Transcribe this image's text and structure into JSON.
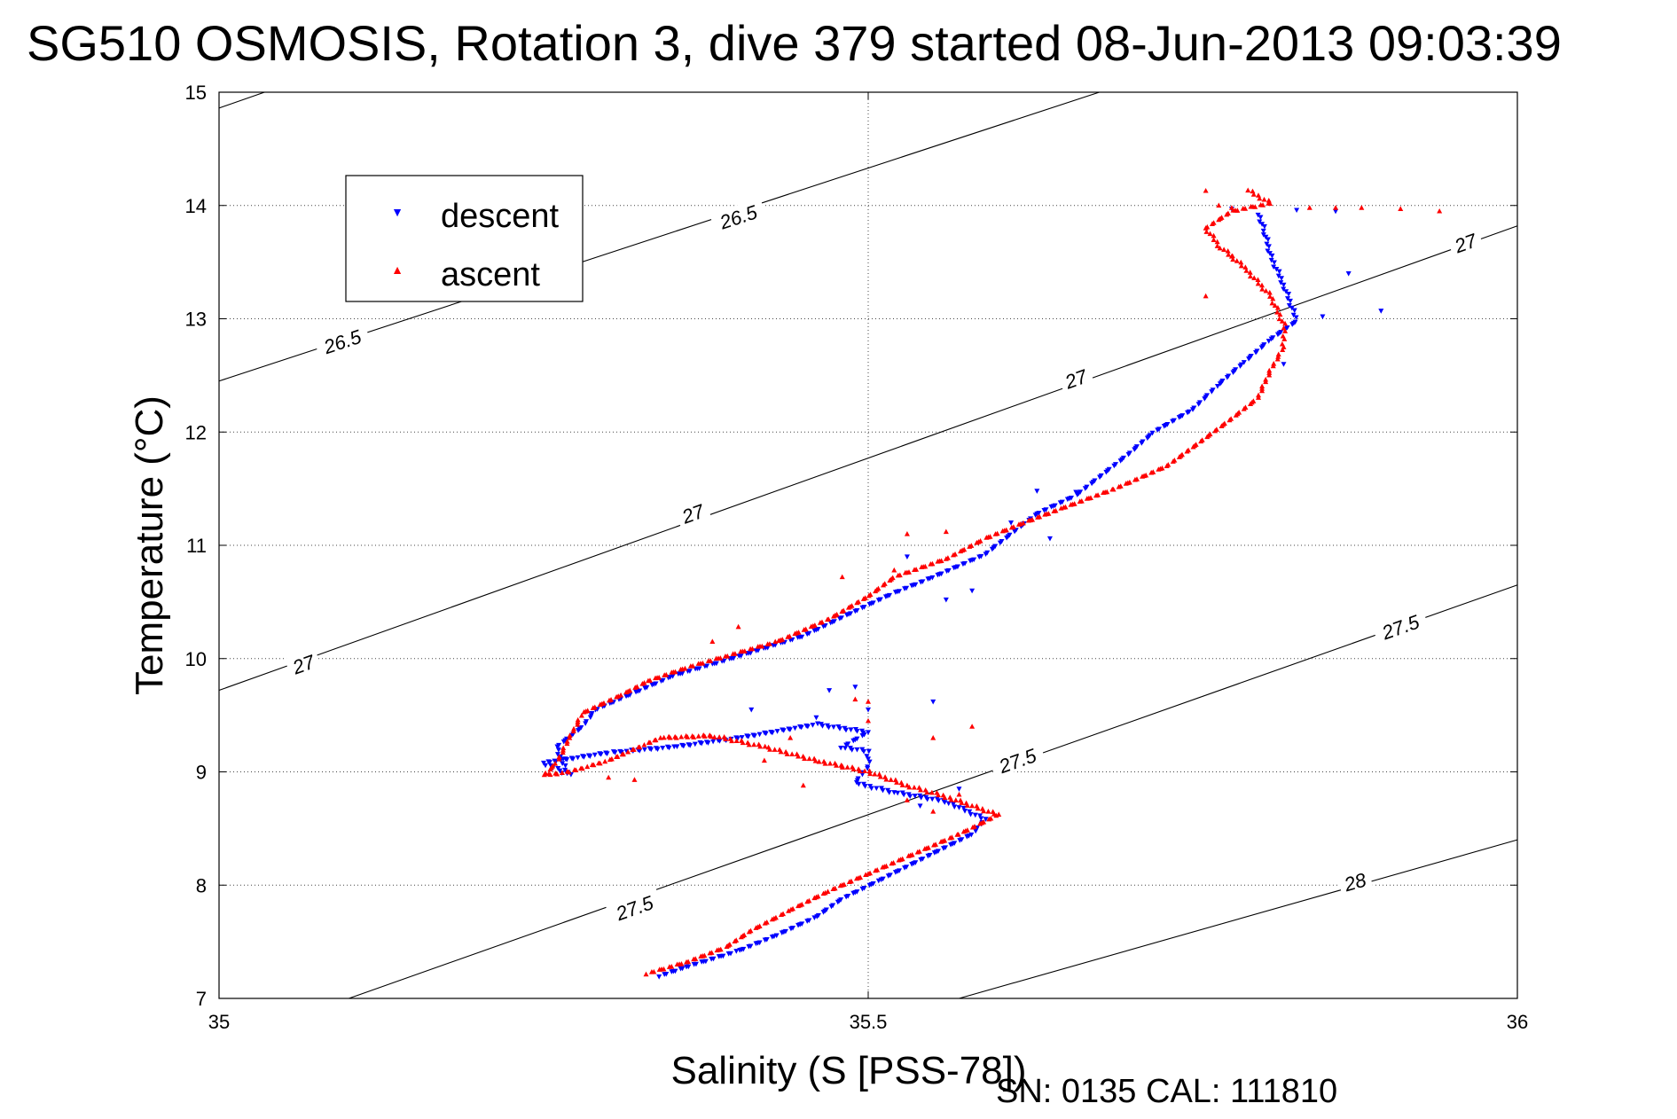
{
  "chart_data": {
    "type": "scatter",
    "title": "SG510 OSMOSIS, Rotation 3, dive 379 started 08-Jun-2013 09:03:39",
    "xlabel": "Salinity (S [PSS-78])",
    "ylabel": "Temperature (°C)",
    "xlim": [
      35,
      36
    ],
    "ylim": [
      7,
      15
    ],
    "x_ticks": [
      "35",
      "35.5",
      "36"
    ],
    "y_ticks": [
      "7",
      "8",
      "9",
      "10",
      "11",
      "12",
      "13",
      "14",
      "15"
    ],
    "grid": true,
    "legend_position": "top-left",
    "density_contours": [
      {
        "value": "26.5",
        "segments": [
          [
            [
              35.0,
              12.45
            ],
            [
              35.678,
              15.0
            ]
          ],
          [
            [
              35.0,
              14.86
            ],
            [
              35.035,
              15.0
            ]
          ]
        ],
        "labels": [
          {
            "text": "26.5",
            "at": [
              35.095,
              12.8
            ]
          },
          {
            "text": "26.5",
            "at": [
              35.4,
              13.9
            ]
          }
        ]
      },
      {
        "value": "27",
        "segments": [
          [
            [
              35.0,
              9.72
            ],
            [
              36.0,
              13.82
            ]
          ]
        ],
        "labels": [
          {
            "text": "27",
            "at": [
              35.065,
              9.95
            ]
          },
          {
            "text": "27",
            "at": [
              35.365,
              11.28
            ]
          },
          {
            "text": "27",
            "at": [
              35.66,
              12.47
            ]
          },
          {
            "text": "27",
            "at": [
              35.96,
              13.67
            ]
          }
        ]
      },
      {
        "value": "27.5",
        "segments": [
          [
            [
              35.1,
              7.0
            ],
            [
              36.0,
              10.65
            ]
          ]
        ],
        "labels": [
          {
            "text": "27.5",
            "at": [
              35.32,
              7.8
            ]
          },
          {
            "text": "27.5",
            "at": [
              35.615,
              9.1
            ]
          },
          {
            "text": "27.5",
            "at": [
              35.91,
              10.28
            ]
          }
        ]
      },
      {
        "value": "28",
        "segments": [
          [
            [
              35.57,
              7.0
            ],
            [
              36.0,
              8.4
            ]
          ]
        ],
        "labels": [
          {
            "text": "28",
            "at": [
              35.875,
              8.03
            ]
          }
        ]
      }
    ],
    "series": [
      {
        "name": "descent",
        "color": "#0000ff",
        "marker": "triangle-down",
        "path": [
          [
            35.34,
            7.2
          ],
          [
            35.36,
            7.28
          ],
          [
            35.4,
            7.42
          ],
          [
            35.43,
            7.56
          ],
          [
            35.46,
            7.72
          ],
          [
            35.48,
            7.88
          ],
          [
            35.51,
            8.05
          ],
          [
            35.55,
            8.28
          ],
          [
            35.58,
            8.45
          ],
          [
            35.59,
            8.58
          ],
          [
            35.56,
            8.74
          ],
          [
            35.52,
            8.82
          ],
          [
            35.49,
            8.9
          ],
          [
            35.5,
            9.05
          ],
          [
            35.5,
            9.18
          ],
          [
            35.48,
            9.22
          ],
          [
            35.5,
            9.35
          ],
          [
            35.46,
            9.42
          ],
          [
            35.4,
            9.3
          ],
          [
            35.35,
            9.22
          ],
          [
            35.3,
            9.17
          ],
          [
            35.25,
            9.08
          ],
          [
            35.27,
            8.97
          ],
          [
            35.265,
            9.08
          ],
          [
            35.26,
            9.22
          ],
          [
            35.28,
            9.4
          ],
          [
            35.29,
            9.55
          ],
          [
            35.32,
            9.7
          ],
          [
            35.35,
            9.85
          ],
          [
            35.4,
            10.02
          ],
          [
            35.45,
            10.2
          ],
          [
            35.49,
            10.42
          ],
          [
            35.52,
            10.58
          ],
          [
            35.55,
            10.72
          ],
          [
            35.59,
            10.92
          ],
          [
            35.61,
            11.1
          ],
          [
            35.63,
            11.28
          ],
          [
            35.66,
            11.44
          ],
          [
            35.68,
            11.62
          ],
          [
            35.7,
            11.8
          ],
          [
            35.72,
            12.0
          ],
          [
            35.75,
            12.2
          ],
          [
            35.77,
            12.42
          ],
          [
            35.79,
            12.62
          ],
          [
            35.81,
            12.82
          ],
          [
            35.83,
            12.98
          ],
          [
            35.82,
            13.3
          ],
          [
            35.81,
            13.55
          ],
          [
            35.805,
            13.78
          ],
          [
            35.8,
            13.95
          ]
        ],
        "extra": [
          [
            35.63,
            11.48
          ],
          [
            35.66,
            11.47
          ],
          [
            35.61,
            11.2
          ],
          [
            35.64,
            11.06
          ],
          [
            35.58,
            10.6
          ],
          [
            35.56,
            10.52
          ],
          [
            35.53,
            10.9
          ],
          [
            35.78,
            13.97
          ],
          [
            35.83,
            13.96
          ],
          [
            35.86,
            13.95
          ],
          [
            35.87,
            13.4
          ],
          [
            35.895,
            13.07
          ],
          [
            35.85,
            13.02
          ],
          [
            35.82,
            12.6
          ],
          [
            35.49,
            9.75
          ],
          [
            35.47,
            9.72
          ],
          [
            35.5,
            9.55
          ],
          [
            35.41,
            9.55
          ],
          [
            35.55,
            9.62
          ],
          [
            35.57,
            8.85
          ],
          [
            35.54,
            8.7
          ],
          [
            35.46,
            9.48
          ]
        ]
      },
      {
        "name": "ascent",
        "color": "#ff0000",
        "marker": "triangle-up",
        "path": [
          [
            35.33,
            7.22
          ],
          [
            35.36,
            7.32
          ],
          [
            35.39,
            7.45
          ],
          [
            35.41,
            7.6
          ],
          [
            35.44,
            7.78
          ],
          [
            35.47,
            7.95
          ],
          [
            35.5,
            8.1
          ],
          [
            35.53,
            8.25
          ],
          [
            35.57,
            8.45
          ],
          [
            35.6,
            8.62
          ],
          [
            35.56,
            8.78
          ],
          [
            35.53,
            8.88
          ],
          [
            35.5,
            9.0
          ],
          [
            35.46,
            9.1
          ],
          [
            35.42,
            9.22
          ],
          [
            35.38,
            9.32
          ],
          [
            35.34,
            9.3
          ],
          [
            35.3,
            9.1
          ],
          [
            35.27,
            9.0
          ],
          [
            35.25,
            8.97
          ],
          [
            35.26,
            9.08
          ],
          [
            35.27,
            9.3
          ],
          [
            35.28,
            9.52
          ],
          [
            35.31,
            9.68
          ],
          [
            35.33,
            9.8
          ],
          [
            35.36,
            9.92
          ],
          [
            35.39,
            10.02
          ],
          [
            35.43,
            10.15
          ],
          [
            35.47,
            10.35
          ],
          [
            35.5,
            10.55
          ],
          [
            35.52,
            10.72
          ],
          [
            35.56,
            10.88
          ],
          [
            35.59,
            11.06
          ],
          [
            35.62,
            11.2
          ],
          [
            35.65,
            11.33
          ],
          [
            35.69,
            11.5
          ],
          [
            35.73,
            11.7
          ],
          [
            35.76,
            11.95
          ],
          [
            35.78,
            12.12
          ],
          [
            35.8,
            12.3
          ],
          [
            35.81,
            12.55
          ],
          [
            35.82,
            12.75
          ],
          [
            35.82,
            12.95
          ],
          [
            35.81,
            13.2
          ],
          [
            35.79,
            13.45
          ],
          [
            35.77,
            13.65
          ],
          [
            35.76,
            13.8
          ],
          [
            35.78,
            13.95
          ],
          [
            35.81,
            14.02
          ],
          [
            35.79,
            14.15
          ]
        ],
        "extra": [
          [
            35.76,
            14.13
          ],
          [
            35.77,
            14.0
          ],
          [
            35.78,
            13.98
          ],
          [
            35.84,
            13.98
          ],
          [
            35.86,
            13.98
          ],
          [
            35.88,
            13.98
          ],
          [
            35.91,
            13.97
          ],
          [
            35.94,
            13.95
          ],
          [
            35.78,
            13.55
          ],
          [
            35.76,
            13.2
          ],
          [
            35.53,
            11.1
          ],
          [
            35.56,
            11.12
          ],
          [
            35.52,
            10.78
          ],
          [
            35.48,
            10.72
          ],
          [
            35.4,
            10.28
          ],
          [
            35.38,
            10.15
          ],
          [
            35.53,
            8.75
          ],
          [
            35.57,
            8.8
          ],
          [
            35.55,
            8.65
          ],
          [
            35.49,
            9.64
          ],
          [
            35.5,
            9.62
          ],
          [
            35.44,
            9.3
          ],
          [
            35.42,
            9.1
          ],
          [
            35.45,
            8.88
          ],
          [
            35.48,
            9.05
          ],
          [
            35.3,
            8.95
          ],
          [
            35.32,
            8.93
          ],
          [
            35.55,
            9.3
          ],
          [
            35.58,
            9.4
          ],
          [
            35.5,
            9.45
          ]
        ]
      }
    ]
  },
  "footer": {
    "serial": "SN: 0135  CAL: 111810"
  }
}
